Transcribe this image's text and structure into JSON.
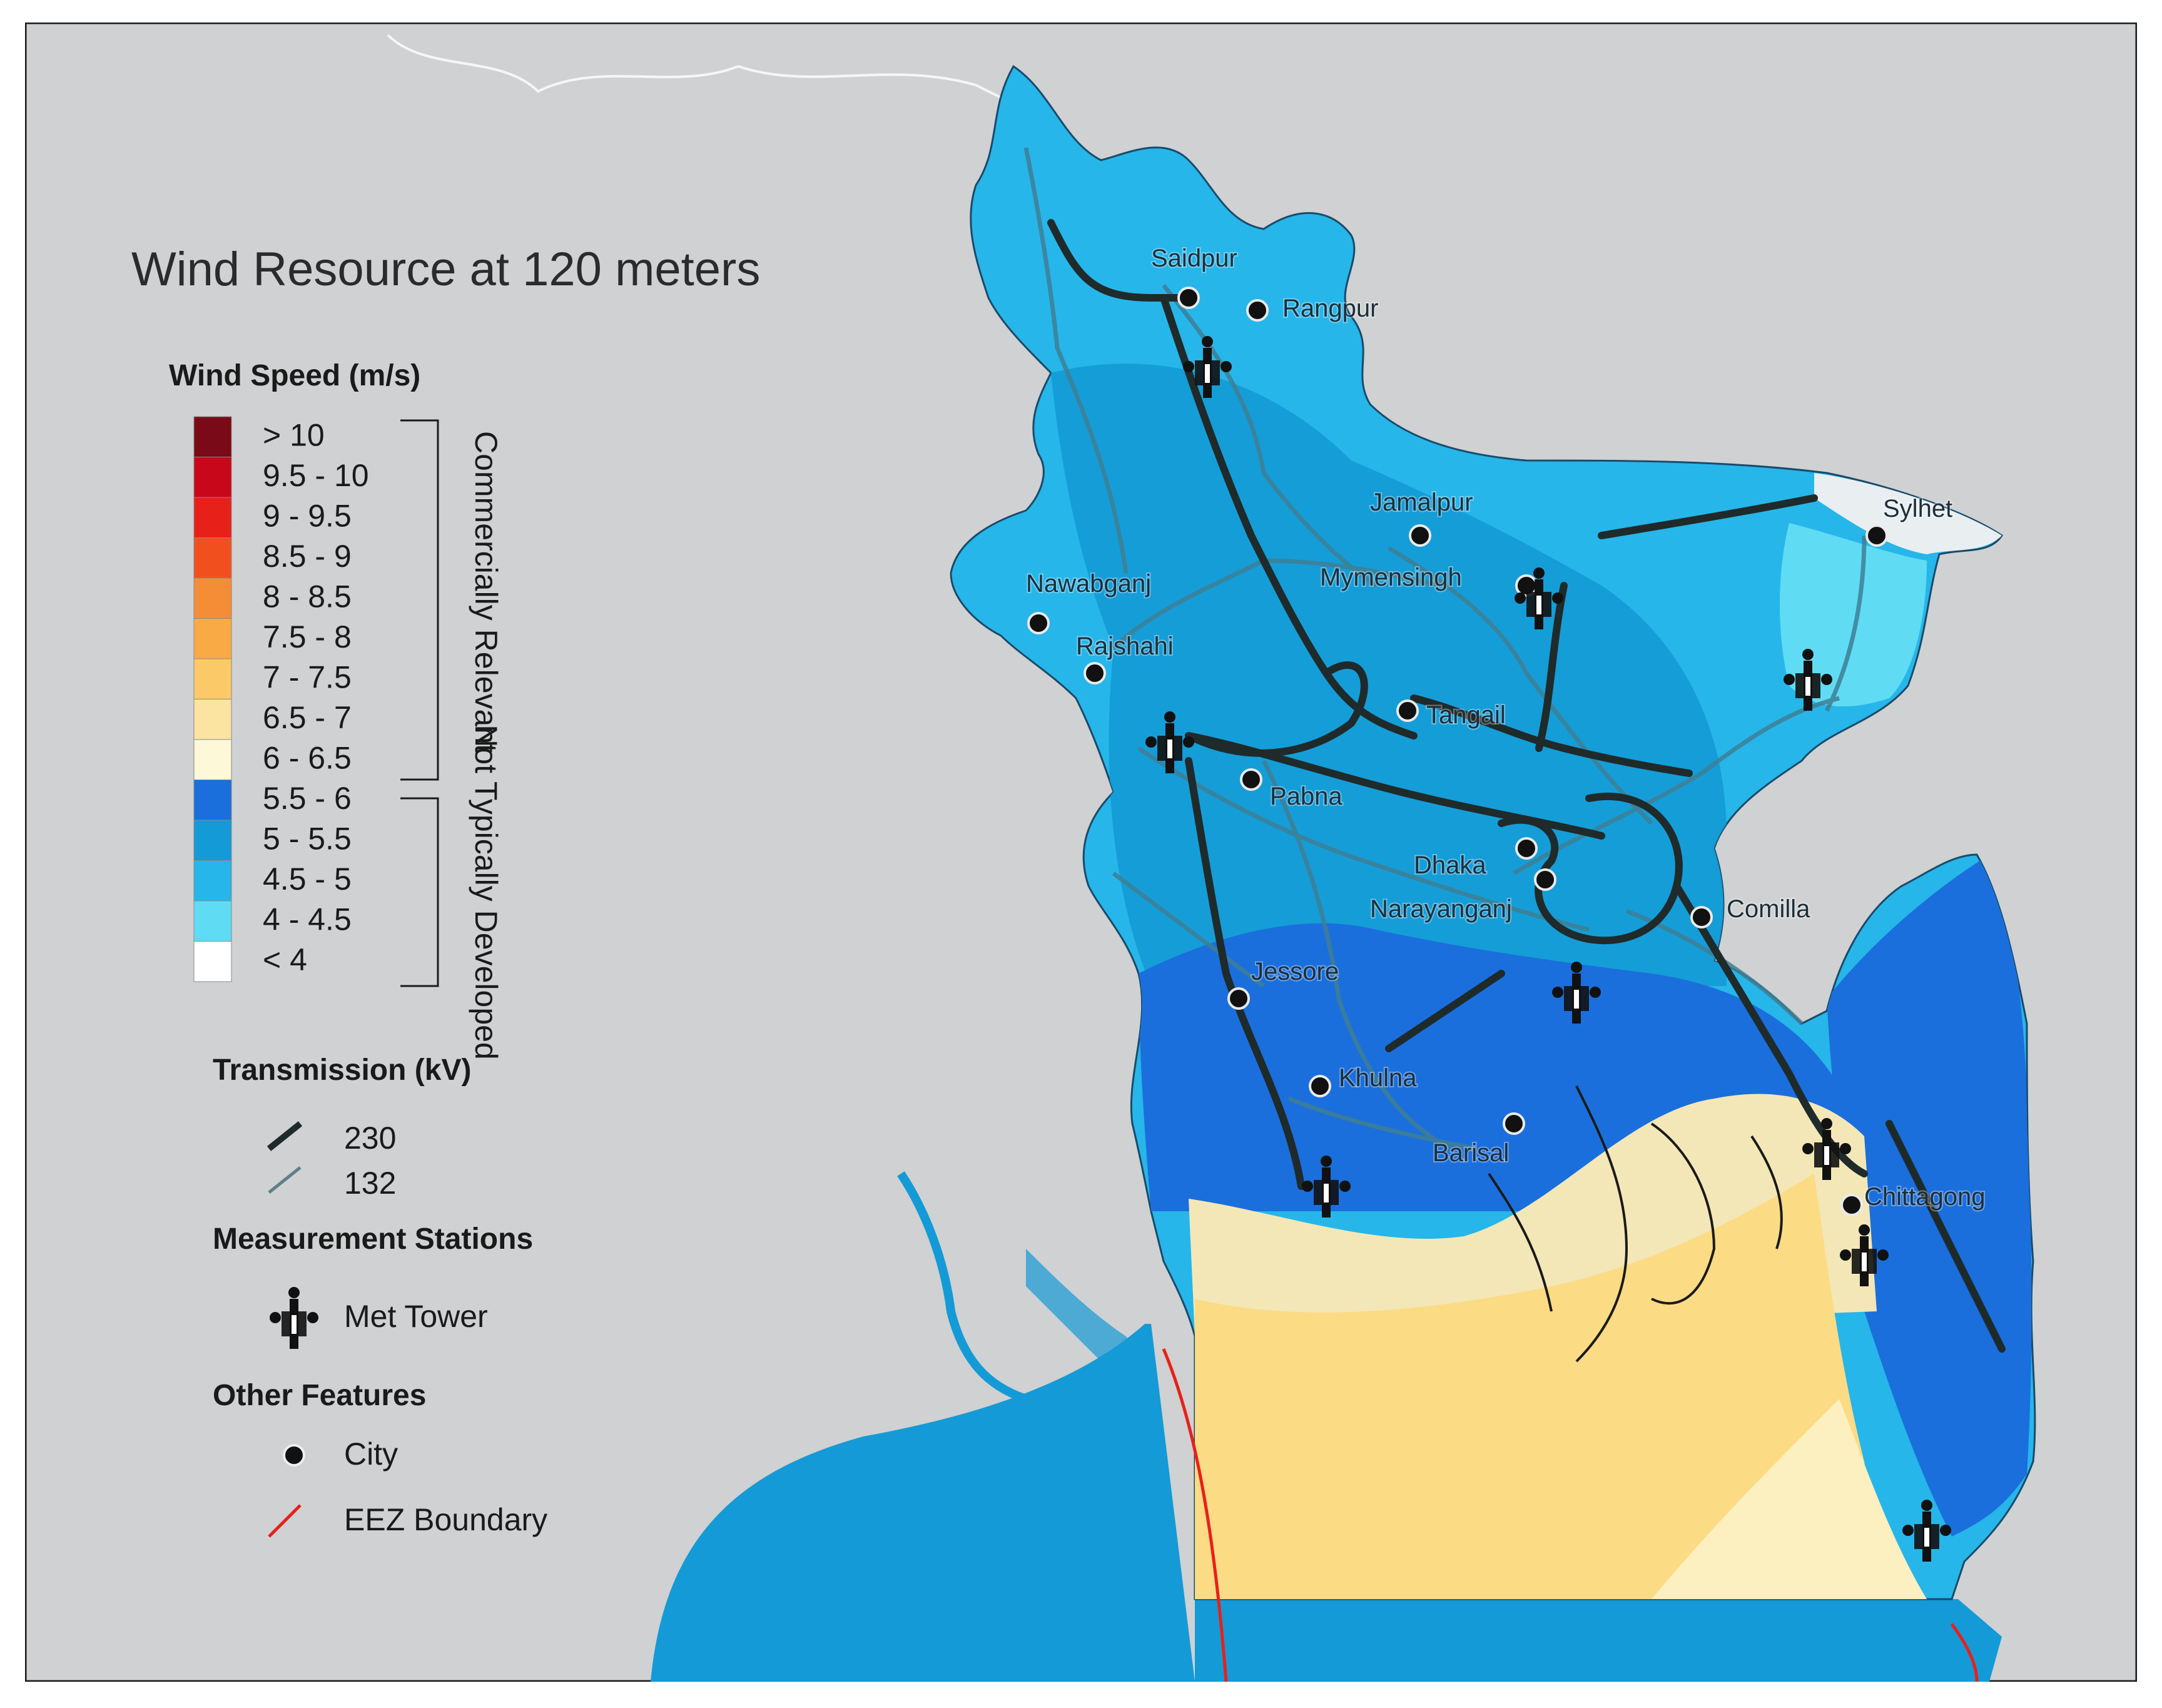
{
  "title": "Wind Resource at 120 meters",
  "legend": {
    "wind_speed_heading": "Wind Speed (m/s)",
    "classes": [
      {
        "label": "> 10",
        "color": "#7a0a18"
      },
      {
        "label": "9.5 - 10",
        "color": "#c8081a"
      },
      {
        "label": "9 - 9.5",
        "color": "#e8201a"
      },
      {
        "label": "8.5 - 9",
        "color": "#f1501e"
      },
      {
        "label": "8 - 8.5",
        "color": "#f58d37"
      },
      {
        "label": "7.5 - 8",
        "color": "#f9aa44"
      },
      {
        "label": "7 - 7.5",
        "color": "#fcc968"
      },
      {
        "label": "6.5 - 7",
        "color": "#fbe4a2"
      },
      {
        "label": "6 - 6.5",
        "color": "#fcf8d8"
      },
      {
        "label": "5.5 - 6",
        "color": "#1a6fdc"
      },
      {
        "label": "5 - 5.5",
        "color": "#149ad6"
      },
      {
        "label": "4.5 - 5",
        "color": "#26b6ea"
      },
      {
        "label": "4 - 4.5",
        "color": "#5fdcf4"
      },
      {
        "label": "< 4",
        "color": "#ffffff"
      }
    ],
    "group_commercial": "Commercially Relevant",
    "group_not_developed": "Not Typically Developed",
    "transmission_heading": "Transmission (kV)",
    "transmission": [
      {
        "label": "230",
        "color": "#1f2a2a"
      },
      {
        "label": "132",
        "color": "#5f7f8a"
      }
    ],
    "stations_heading": "Measurement Stations",
    "met_tower_label": "Met Tower",
    "other_heading": "Other Features",
    "city_label": "City",
    "eez_label": "EEZ Boundary",
    "eez_color": "#e8201a"
  },
  "cities": [
    "Saidpur",
    "Rangpur",
    "Jamalpur",
    "Sylhet",
    "Mymensingh",
    "Nawabganj",
    "Rajshahi",
    "Tangail",
    "Pabna",
    "Dhaka",
    "Narayanganj",
    "Comilla",
    "Jessore",
    "Khulna",
    "Barisal",
    "Chittagong"
  ],
  "colors": {
    "background_land": "#cfd1d2",
    "sea": "#149ad6",
    "land_low": "#26b6ea",
    "land_mid": "#149ad6",
    "land_high": "#1a6fdc",
    "coast_sand": "#f3e7b7",
    "offshore": "#fcdb85"
  }
}
